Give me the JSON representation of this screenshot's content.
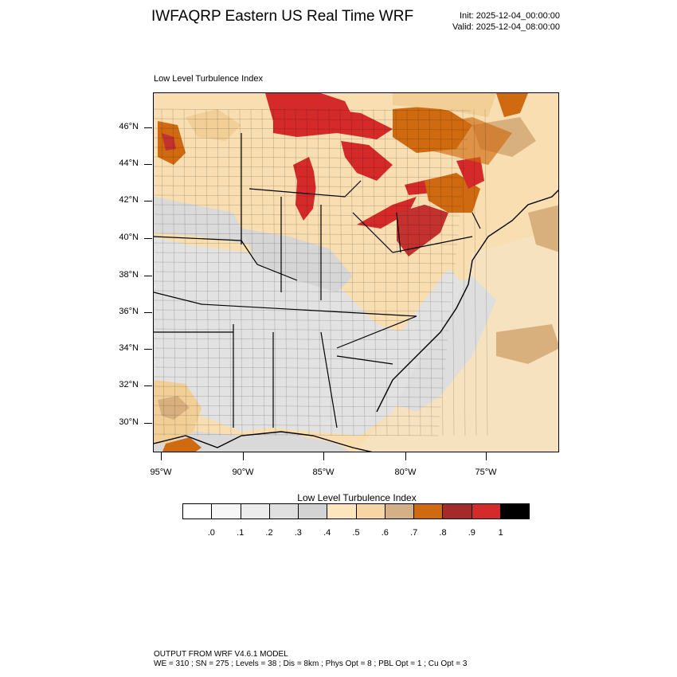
{
  "header": {
    "title": "IWFAQRP Eastern US Real Time WRF",
    "init": "Init: 2025-12-04_00:00:00",
    "valid": "Valid: 2025-12-04_08:00:00"
  },
  "map": {
    "label": "Low Level Turbulence Index",
    "lat_labels": [
      "46°N",
      "44°N",
      "42°N",
      "40°N",
      "38°N",
      "36°N",
      "34°N",
      "32°N",
      "30°N"
    ],
    "lon_labels": [
      "95°W",
      "90°W",
      "85°W",
      "80°W",
      "75°W"
    ],
    "colors": {
      "land_default": "#f8deb0",
      "light_gray": "#e6e6e6",
      "gray": "#d8d8d8",
      "pale": "#fde7bf",
      "tan": "#d8b07e",
      "orange": "#d06a10",
      "dark_red": "#a52a2a",
      "red": "#d42a2a",
      "water_gray": "#dcdcdc"
    }
  },
  "colorbar": {
    "title": "Low Level Turbulence Index",
    "colors": [
      "#ffffff",
      "#f7f7f7",
      "#ececec",
      "#e0e0e0",
      "#d3d3d3",
      "#fde6bd",
      "#f7d6a6",
      "#d4b089",
      "#d06a10",
      "#a52a2a",
      "#d42a2a",
      "#000000"
    ],
    "labels": [
      ".0",
      ".1",
      ".2",
      ".3",
      ".4",
      ".5",
      ".6",
      ".7",
      ".8",
      ".9",
      "1"
    ]
  },
  "footer": {
    "line1": "OUTPUT FROM WRF V4.6.1 MODEL",
    "line2": "WE = 310 ; SN = 275 ; Levels = 38 ; Dis = 8km ; Phys Opt = 8 ; PBL Opt = 1 ; Cu Opt = 3"
  }
}
